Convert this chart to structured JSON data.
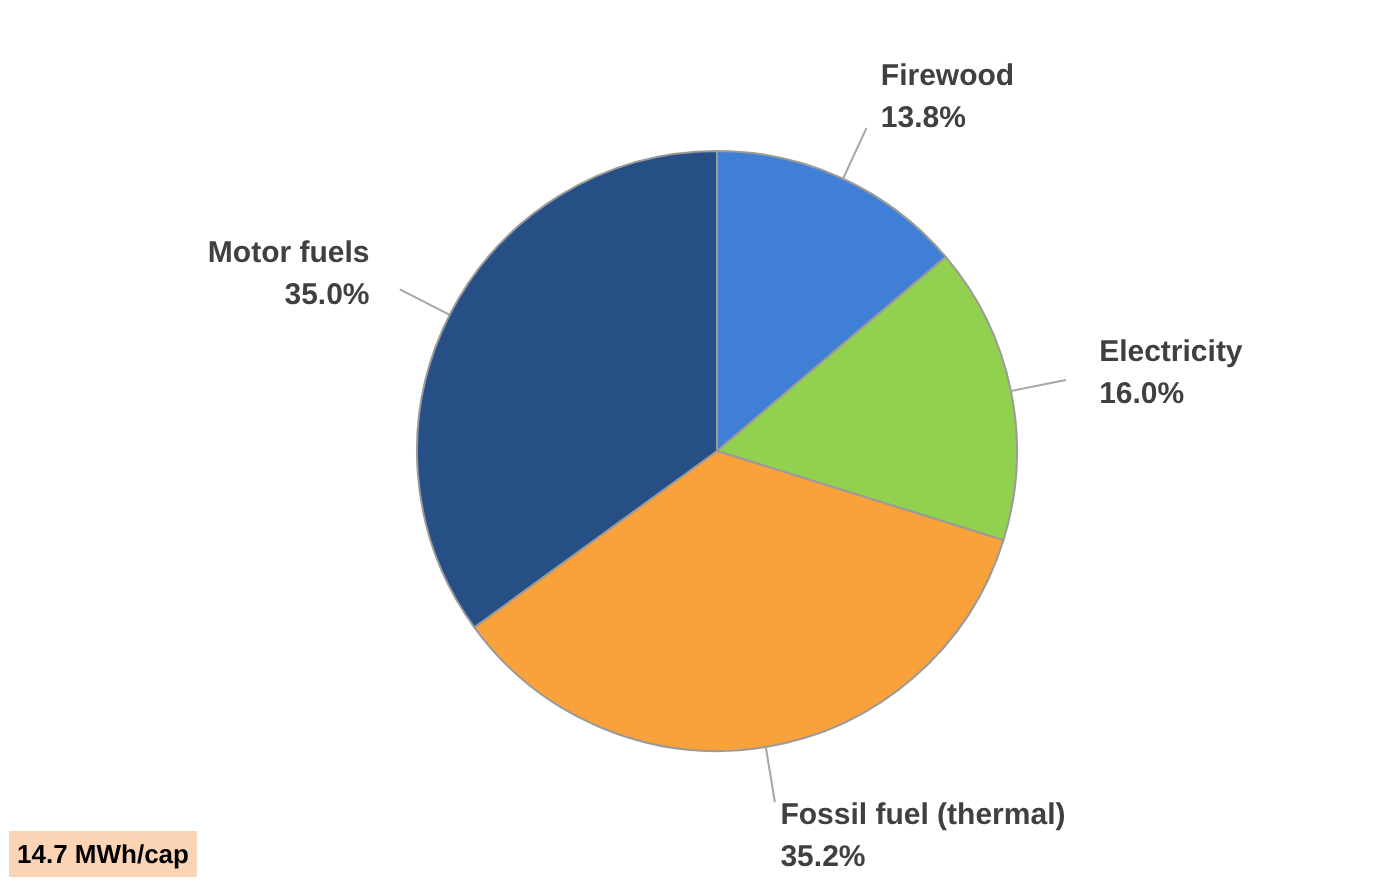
{
  "chart_data": {
    "type": "pie",
    "categories": [
      "Firewood",
      "Electricity",
      "Fossil fuel (thermal)",
      "Motor fuels"
    ],
    "values": [
      13.8,
      16.0,
      35.2,
      35.0
    ],
    "value_labels": [
      "13.8%",
      "16.0%",
      "35.2%",
      "35.0%"
    ],
    "colors": [
      "#3f7fd6",
      "#92d050",
      "#f9a13a",
      "#264f86"
    ],
    "annotations": [
      "14.7 MWh/cap"
    ]
  }
}
